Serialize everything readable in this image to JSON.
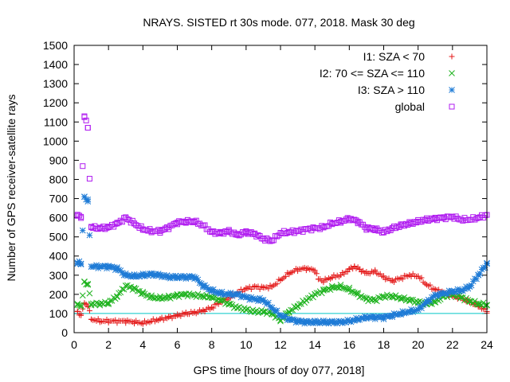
{
  "chart_data": {
    "type": "scatter",
    "title": "NRAYS. SISTED rt 30s mode. 077, 2018. Mask 30 deg",
    "xlabel": "GPS time [hours of doy 077, 2018]",
    "ylabel": "Number of GPS receiver-satellite rays",
    "xlim": [
      0,
      24
    ],
    "ylim": [
      0,
      1500
    ],
    "x_ticks": [
      "0",
      "2",
      "4",
      "6",
      "8",
      "10",
      "12",
      "14",
      "16",
      "18",
      "20",
      "22",
      "24"
    ],
    "y_ticks": [
      "0",
      "100",
      "200",
      "300",
      "400",
      "500",
      "600",
      "700",
      "800",
      "900",
      "1000",
      "1100",
      "1200",
      "1300",
      "1400",
      "1500"
    ],
    "reference_line": {
      "y": 100,
      "color": "#00c8c8"
    },
    "legend_position": "top-right",
    "series": [
      {
        "name": "I1: SZA < 70",
        "marker": "+",
        "color": "#e41a1a",
        "points": [
          [
            0.2,
            110
          ],
          [
            0.4,
            90
          ],
          [
            0.6,
            155
          ],
          [
            0.8,
            140
          ],
          [
            1,
            70
          ],
          [
            1.5,
            60
          ],
          [
            2,
            60
          ],
          [
            3,
            60
          ],
          [
            3.5,
            55
          ],
          [
            4,
            50
          ],
          [
            4.5,
            60
          ],
          [
            5,
            70
          ],
          [
            5.5,
            80
          ],
          [
            6,
            90
          ],
          [
            6.5,
            100
          ],
          [
            7,
            105
          ],
          [
            7.5,
            115
          ],
          [
            8,
            130
          ],
          [
            8.5,
            160
          ],
          [
            9,
            180
          ],
          [
            9.5,
            210
          ],
          [
            10,
            230
          ],
          [
            10.5,
            240
          ],
          [
            11,
            235
          ],
          [
            11.5,
            240
          ],
          [
            12,
            275
          ],
          [
            12.5,
            310
          ],
          [
            13,
            330
          ],
          [
            13.5,
            335
          ],
          [
            14,
            325
          ],
          [
            14.2,
            280
          ],
          [
            14.5,
            270
          ],
          [
            15,
            290
          ],
          [
            15.5,
            300
          ],
          [
            16,
            330
          ],
          [
            16.3,
            345
          ],
          [
            16.6,
            330
          ],
          [
            17,
            310
          ],
          [
            17.5,
            320
          ],
          [
            18,
            290
          ],
          [
            18.5,
            270
          ],
          [
            19,
            285
          ],
          [
            19.5,
            300
          ],
          [
            20,
            295
          ],
          [
            20.5,
            250
          ],
          [
            21,
            225
          ],
          [
            21.5,
            210
          ],
          [
            22,
            190
          ],
          [
            22.5,
            180
          ],
          [
            23,
            160
          ],
          [
            23.5,
            140
          ],
          [
            24,
            110
          ]
        ]
      },
      {
        "name": "I2: 70 <= SZA <= 110",
        "marker": "x",
        "color": "#1fb31f",
        "points": [
          [
            0.2,
            150
          ],
          [
            0.4,
            135
          ],
          [
            0.6,
            265
          ],
          [
            0.8,
            250
          ],
          [
            1,
            150
          ],
          [
            1.5,
            150
          ],
          [
            2,
            155
          ],
          [
            2.5,
            190
          ],
          [
            3,
            245
          ],
          [
            3.5,
            230
          ],
          [
            4,
            205
          ],
          [
            4.5,
            185
          ],
          [
            5,
            180
          ],
          [
            5.5,
            185
          ],
          [
            6,
            195
          ],
          [
            6.5,
            200
          ],
          [
            7,
            195
          ],
          [
            7.5,
            190
          ],
          [
            8,
            185
          ],
          [
            8.5,
            170
          ],
          [
            9,
            150
          ],
          [
            9.5,
            130
          ],
          [
            10,
            120
          ],
          [
            10.5,
            110
          ],
          [
            11,
            110
          ],
          [
            11.5,
            100
          ],
          [
            12,
            65
          ],
          [
            12.5,
            110
          ],
          [
            13,
            140
          ],
          [
            13.5,
            170
          ],
          [
            14,
            200
          ],
          [
            14.5,
            220
          ],
          [
            15,
            235
          ],
          [
            15.5,
            240
          ],
          [
            16,
            225
          ],
          [
            16.5,
            200
          ],
          [
            17,
            175
          ],
          [
            17.5,
            170
          ],
          [
            18,
            190
          ],
          [
            18.5,
            190
          ],
          [
            19,
            180
          ],
          [
            19.5,
            170
          ],
          [
            20,
            160
          ],
          [
            20.5,
            150
          ],
          [
            21,
            160
          ],
          [
            21.5,
            190
          ],
          [
            22,
            200
          ],
          [
            22.5,
            185
          ],
          [
            23,
            165
          ],
          [
            23.5,
            150
          ],
          [
            24,
            145
          ]
        ]
      },
      {
        "name": "I3: SZA > 110",
        "marker": "*",
        "color": "#1e7bd6",
        "points": [
          [
            0.2,
            365
          ],
          [
            0.4,
            360
          ],
          [
            0.6,
            710
          ],
          [
            0.8,
            685
          ],
          [
            1,
            345
          ],
          [
            1.5,
            345
          ],
          [
            2,
            345
          ],
          [
            2.5,
            335
          ],
          [
            3,
            300
          ],
          [
            3.5,
            295
          ],
          [
            4,
            300
          ],
          [
            4.5,
            305
          ],
          [
            5,
            300
          ],
          [
            5.5,
            290
          ],
          [
            6,
            290
          ],
          [
            6.5,
            290
          ],
          [
            7,
            290
          ],
          [
            7.5,
            245
          ],
          [
            8,
            220
          ],
          [
            8.5,
            205
          ],
          [
            9,
            200
          ],
          [
            9.5,
            200
          ],
          [
            10,
            185
          ],
          [
            10.5,
            175
          ],
          [
            11,
            170
          ],
          [
            11.5,
            130
          ],
          [
            12,
            90
          ],
          [
            12.5,
            70
          ],
          [
            13,
            60
          ],
          [
            13.5,
            55
          ],
          [
            14,
            55
          ],
          [
            14.5,
            55
          ],
          [
            15,
            55
          ],
          [
            15.5,
            55
          ],
          [
            16,
            60
          ],
          [
            16.5,
            70
          ],
          [
            17,
            80
          ],
          [
            17.5,
            80
          ],
          [
            18,
            80
          ],
          [
            18.5,
            90
          ],
          [
            19,
            100
          ],
          [
            19.5,
            110
          ],
          [
            20,
            120
          ],
          [
            20.5,
            160
          ],
          [
            21,
            195
          ],
          [
            21.5,
            205
          ],
          [
            22,
            215
          ],
          [
            22.5,
            220
          ],
          [
            23,
            240
          ],
          [
            23.5,
            300
          ],
          [
            24,
            360
          ]
        ]
      },
      {
        "name": "global",
        "marker": "square",
        "color": "#b01cf0",
        "points": [
          [
            0.2,
            610
          ],
          [
            0.4,
            605
          ],
          [
            0.6,
            1130
          ],
          [
            0.8,
            1070
          ],
          [
            1,
            550
          ],
          [
            1.5,
            545
          ],
          [
            2,
            550
          ],
          [
            2.5,
            570
          ],
          [
            3,
            600
          ],
          [
            3.5,
            570
          ],
          [
            4,
            540
          ],
          [
            4.5,
            530
          ],
          [
            5,
            530
          ],
          [
            5.5,
            550
          ],
          [
            6,
            575
          ],
          [
            6.5,
            580
          ],
          [
            7,
            580
          ],
          [
            7.5,
            560
          ],
          [
            8,
            525
          ],
          [
            8.5,
            520
          ],
          [
            9,
            530
          ],
          [
            9.5,
            510
          ],
          [
            10,
            525
          ],
          [
            10.5,
            515
          ],
          [
            11,
            490
          ],
          [
            11.5,
            480
          ],
          [
            12,
            520
          ],
          [
            12.5,
            525
          ],
          [
            13,
            530
          ],
          [
            13.5,
            540
          ],
          [
            14,
            545
          ],
          [
            14.5,
            550
          ],
          [
            15,
            570
          ],
          [
            15.5,
            580
          ],
          [
            16,
            595
          ],
          [
            16.5,
            580
          ],
          [
            17,
            545
          ],
          [
            17.5,
            540
          ],
          [
            18,
            525
          ],
          [
            18.5,
            545
          ],
          [
            19,
            560
          ],
          [
            19.5,
            570
          ],
          [
            20,
            580
          ],
          [
            20.5,
            590
          ],
          [
            21,
            595
          ],
          [
            21.5,
            600
          ],
          [
            22,
            605
          ],
          [
            22.5,
            590
          ],
          [
            23,
            590
          ],
          [
            23.5,
            600
          ],
          [
            24,
            615
          ]
        ]
      }
    ]
  }
}
